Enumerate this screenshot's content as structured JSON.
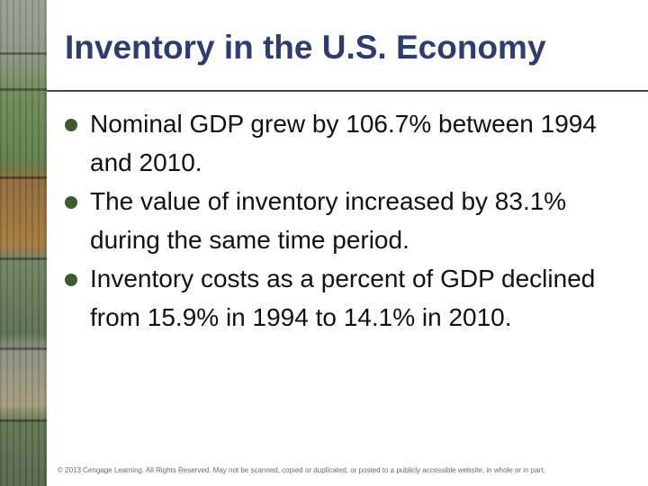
{
  "slide": {
    "title": "Inventory in the U.S. Economy",
    "bullets": [
      "Nominal GDP grew by 106.7% between 1994 and 2010.",
      "The value of inventory increased by 83.1% during the same time period.",
      "Inventory costs as a percent of GDP declined from 15.9% in 1994 to 14.1% in 2010."
    ],
    "footer": "© 2013 Cengage Learning. All Rights Reserved. May not be scanned, copied or duplicated, or posted to a publicly accessible website, in whole or in part."
  },
  "colors": {
    "title": "#2e3c6e",
    "rule": "#3c4670",
    "bullet": "#3f5a2e",
    "text": "#111111"
  }
}
